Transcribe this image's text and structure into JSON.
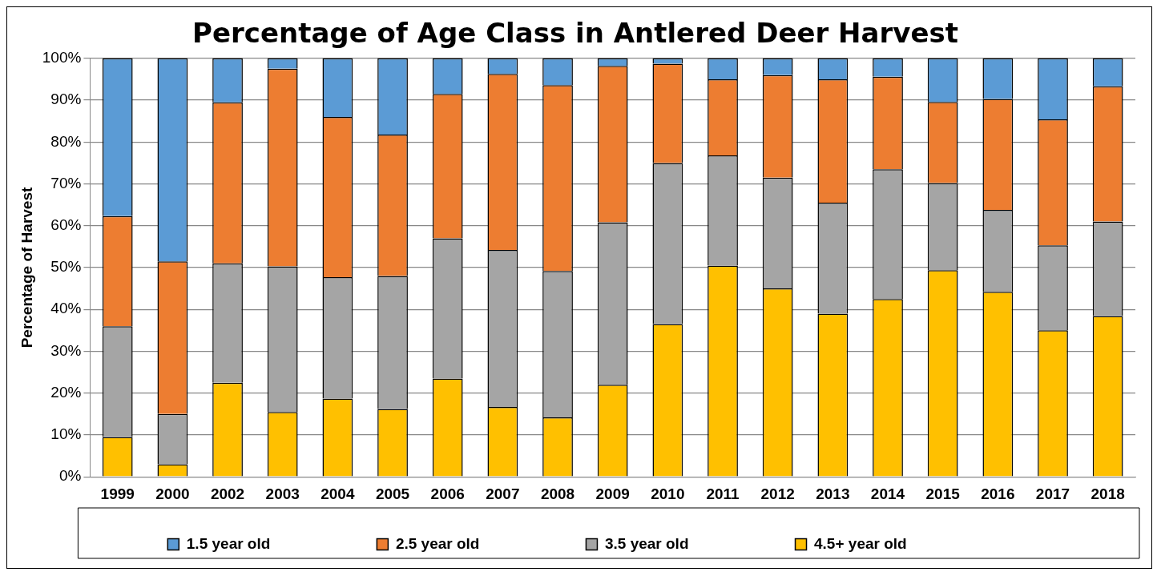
{
  "chart_data": {
    "type": "bar",
    "title": "Percentage of Age Class in Antlered Deer Harvest",
    "ylabel": "Percentage of Harvest",
    "categories": [
      "1999",
      "2000",
      "2002",
      "2003",
      "2004",
      "2005",
      "2006",
      "2007",
      "2008",
      "2009",
      "2010",
      "2011",
      "2012",
      "2013",
      "2014",
      "2015",
      "2016",
      "2017",
      "2018"
    ],
    "stacked": true,
    "grid": "y",
    "legend": "bottom",
    "ylim": [
      0,
      100
    ],
    "yticks": [
      {
        "value": 0,
        "label": "0%"
      },
      {
        "value": 10,
        "label": "10%"
      },
      {
        "value": 20,
        "label": "20%"
      },
      {
        "value": 30,
        "label": "30%"
      },
      {
        "value": 40,
        "label": "40%"
      },
      {
        "value": 50,
        "label": "50%"
      },
      {
        "value": 60,
        "label": "60%"
      },
      {
        "value": 70,
        "label": "70%"
      },
      {
        "value": 80,
        "label": "80%"
      },
      {
        "value": 90,
        "label": "90%"
      },
      {
        "value": 100,
        "label": "100%"
      }
    ],
    "series": [
      {
        "name": "4.5+ year old",
        "color": "#ffc000",
        "values": [
          9.5,
          3,
          22.5,
          15.5,
          18.7,
          16.2,
          23.5,
          16.7,
          14.2,
          22,
          36.5,
          50.5,
          45,
          39,
          42.5,
          49.4,
          44.2,
          35,
          38.4
        ]
      },
      {
        "name": "3.5 year old",
        "color": "#a5a5a5",
        "values": [
          26.5,
          12,
          28.5,
          34.8,
          29,
          31.8,
          33.5,
          37.5,
          35,
          38.8,
          38.5,
          26.3,
          26.5,
          26.5,
          31,
          20.8,
          19.6,
          20.3,
          22.6
        ]
      },
      {
        "name": "2.5 year old",
        "color": "#ed7d31",
        "values": [
          26.3,
          36.5,
          38.5,
          47.2,
          38.3,
          33.8,
          34.5,
          42.1,
          44.4,
          37.4,
          23.7,
          18.2,
          24.5,
          29.5,
          22.1,
          19.4,
          26.5,
          30.1,
          32.3
        ]
      },
      {
        "name": "1.5 year old",
        "color": "#5b9bd5",
        "values": [
          37.7,
          48.5,
          10.5,
          2.5,
          14,
          18.2,
          8.5,
          3.7,
          6.4,
          1.8,
          1.3,
          5,
          4,
          5,
          4.4,
          10.4,
          9.7,
          14.6,
          6.7
        ]
      }
    ]
  }
}
